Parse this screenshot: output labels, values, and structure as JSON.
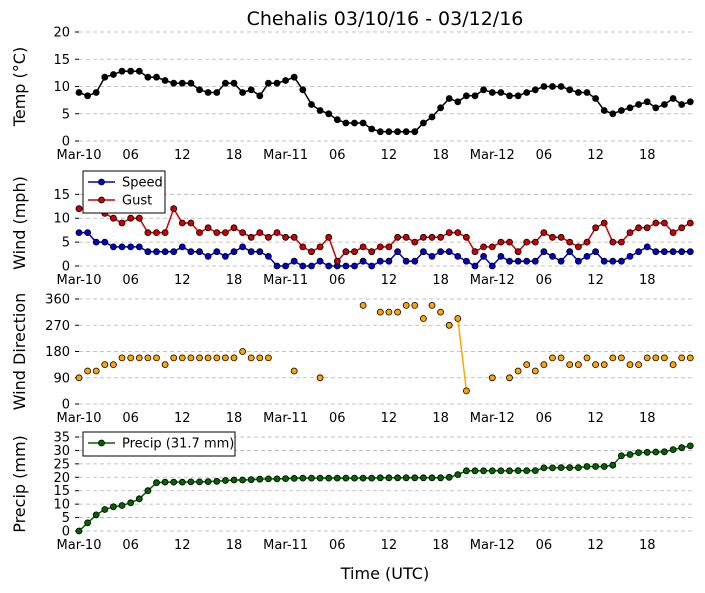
{
  "title": "Chehalis 03/10/16 - 03/12/16",
  "xlabel": "Time (UTC)",
  "x_ticks": [
    {
      "label": "Mar-10",
      "h": 0
    },
    {
      "label": "06",
      "h": 6
    },
    {
      "label": "12",
      "h": 12
    },
    {
      "label": "18",
      "h": 18
    },
    {
      "label": "Mar-11",
      "h": 24
    },
    {
      "label": "06",
      "h": 30
    },
    {
      "label": "12",
      "h": 36
    },
    {
      "label": "18",
      "h": 42
    },
    {
      "label": "Mar-12",
      "h": 48
    },
    {
      "label": "06",
      "h": 54
    },
    {
      "label": "12",
      "h": 60
    },
    {
      "label": "18",
      "h": 66
    }
  ],
  "colors": {
    "temp": "#000000",
    "speed": "#0000cc",
    "gust": "#cc0000",
    "direction": "#ffa500",
    "precip": "#006400"
  },
  "chart_data": [
    {
      "type": "line",
      "ylabel": "Temp (°C)",
      "ylim": [
        0,
        20
      ],
      "yticks": [
        0,
        5,
        10,
        15,
        20
      ],
      "grid": true,
      "x_unit": "hours since Mar-10 00:00",
      "series": [
        {
          "key": "temp",
          "x": [
            0,
            1,
            2,
            3,
            4,
            5,
            6,
            7,
            8,
            9,
            10,
            11,
            12,
            13,
            14,
            15,
            16,
            17,
            18,
            19,
            20,
            21,
            22,
            23,
            24,
            25,
            26,
            27,
            28,
            29,
            30,
            31,
            32,
            33,
            34,
            35,
            36,
            37,
            38,
            39,
            40,
            41,
            42,
            43,
            44,
            45,
            46,
            47,
            48,
            49,
            50,
            51,
            52,
            53,
            54,
            55,
            56,
            57,
            58,
            59,
            60,
            61,
            62,
            63,
            64,
            65,
            66,
            67,
            68,
            69,
            70,
            71
          ],
          "y": [
            8.9,
            8.3,
            8.9,
            11.7,
            12.2,
            12.8,
            12.8,
            12.8,
            11.7,
            11.7,
            11.1,
            10.6,
            10.6,
            10.6,
            9.4,
            8.9,
            8.9,
            10.6,
            10.6,
            8.9,
            9.4,
            8.3,
            10.6,
            10.6,
            11.1,
            11.7,
            9.4,
            6.7,
            5.6,
            5.0,
            3.9,
            3.3,
            3.3,
            3.3,
            2.2,
            1.7,
            1.7,
            1.7,
            1.7,
            1.7,
            3.3,
            4.4,
            6.1,
            7.8,
            7.2,
            8.3,
            8.3,
            9.4,
            8.9,
            8.9,
            8.3,
            8.3,
            8.9,
            9.4,
            10.0,
            10.0,
            10.0,
            9.4,
            8.9,
            8.9,
            7.8,
            5.6,
            5.0,
            5.6,
            6.1,
            6.7,
            7.2,
            6.1,
            6.7,
            7.8,
            6.7,
            7.2
          ]
        }
      ]
    },
    {
      "type": "line",
      "ylabel": "Wind (mph)",
      "ylim": [
        0,
        18
      ],
      "yticks": [
        0,
        5,
        10,
        15
      ],
      "grid": true,
      "legend": "upper-left",
      "series": [
        {
          "key": "speed",
          "name": "Speed",
          "y": [
            7,
            7,
            5,
            5,
            4,
            4,
            4,
            4,
            3,
            3,
            3,
            3,
            4,
            3,
            3,
            2,
            3,
            2,
            3,
            4,
            3,
            3,
            2,
            0,
            0,
            1,
            0,
            0,
            1,
            0,
            0,
            0,
            0,
            1,
            0,
            1,
            1,
            3,
            1,
            1,
            3,
            2,
            3,
            3,
            2,
            1,
            0,
            2,
            0,
            2,
            1,
            1,
            1,
            1,
            3,
            2,
            1,
            3,
            1,
            2,
            3,
            1,
            1,
            1,
            2,
            3,
            4,
            3,
            3,
            3,
            3,
            3
          ]
        },
        {
          "key": "gust",
          "name": "Gust",
          "y": [
            12,
            12,
            12,
            11,
            10,
            9,
            10,
            10,
            7,
            7,
            7,
            12,
            9,
            9,
            7,
            8,
            7,
            7,
            8,
            7,
            6,
            7,
            6,
            7,
            6,
            6,
            4,
            3,
            4,
            6,
            1,
            3,
            3,
            4,
            3,
            4,
            4,
            6,
            6,
            5,
            6,
            6,
            6,
            7,
            7,
            6,
            3,
            4,
            4,
            5,
            5,
            3,
            5,
            5,
            7,
            6,
            6,
            5,
            4,
            5,
            8,
            9,
            5,
            5,
            7,
            8,
            8,
            9,
            9,
            7,
            8,
            9
          ]
        }
      ]
    },
    {
      "type": "scatter",
      "ylabel": "Wind Direction",
      "ylim": [
        0,
        360
      ],
      "yticks": [
        0,
        90,
        180,
        270,
        360
      ],
      "grid": true,
      "series": [
        {
          "key": "direction",
          "x": [
            0,
            1,
            2,
            3,
            4,
            5,
            6,
            7,
            8,
            9,
            10,
            11,
            12,
            13,
            14,
            15,
            16,
            17,
            18,
            19,
            20,
            21,
            22,
            25,
            28,
            33,
            35,
            36,
            37,
            38,
            39,
            40,
            41,
            42,
            43,
            44,
            45,
            48,
            50,
            51,
            52,
            53,
            54,
            55,
            56,
            57,
            58,
            59,
            60,
            61,
            62,
            63,
            64,
            65,
            66,
            67,
            68,
            69,
            70,
            71
          ],
          "y": [
            90,
            113,
            113,
            135,
            135,
            158,
            158,
            158,
            158,
            158,
            135,
            158,
            158,
            158,
            158,
            158,
            158,
            158,
            158,
            180,
            158,
            158,
            158,
            113,
            90,
            338,
            315,
            315,
            315,
            338,
            338,
            293,
            338,
            315,
            270,
            293,
            45,
            90,
            90,
            113,
            135,
            113,
            135,
            158,
            158,
            135,
            135,
            158,
            135,
            135,
            158,
            158,
            135,
            135,
            158,
            158,
            158,
            135,
            158,
            158
          ],
          "connect_runs": [
            [
              44,
              45
            ]
          ]
        }
      ]
    },
    {
      "type": "line",
      "ylabel": "Precip (mm)",
      "ylim": [
        0,
        35
      ],
      "yticks": [
        0,
        5,
        10,
        15,
        20,
        25,
        30,
        35
      ],
      "grid": true,
      "legend": "upper-left",
      "series": [
        {
          "key": "precip",
          "name": "Precip (31.7 mm)",
          "y": [
            0,
            3,
            6,
            8,
            9,
            9.5,
            10.5,
            12,
            15,
            18,
            18.2,
            18.2,
            18.2,
            18.3,
            18.3,
            18.4,
            18.5,
            18.8,
            19,
            19,
            19.1,
            19.3,
            19.4,
            19.4,
            19.5,
            19.6,
            19.7,
            19.7,
            19.7,
            19.7,
            19.7,
            19.7,
            19.7,
            19.7,
            19.7,
            19.8,
            19.8,
            19.8,
            19.8,
            19.8,
            19.8,
            19.8,
            19.8,
            20,
            21,
            22.4,
            22.4,
            22.4,
            22.4,
            22.4,
            22.4,
            22.5,
            22.5,
            22.5,
            23.5,
            23.5,
            23.6,
            23.6,
            23.6,
            24,
            24,
            24,
            24.5,
            28,
            28.5,
            29.2,
            29.3,
            29.4,
            29.5,
            30.3,
            31,
            31.7
          ]
        }
      ]
    }
  ]
}
